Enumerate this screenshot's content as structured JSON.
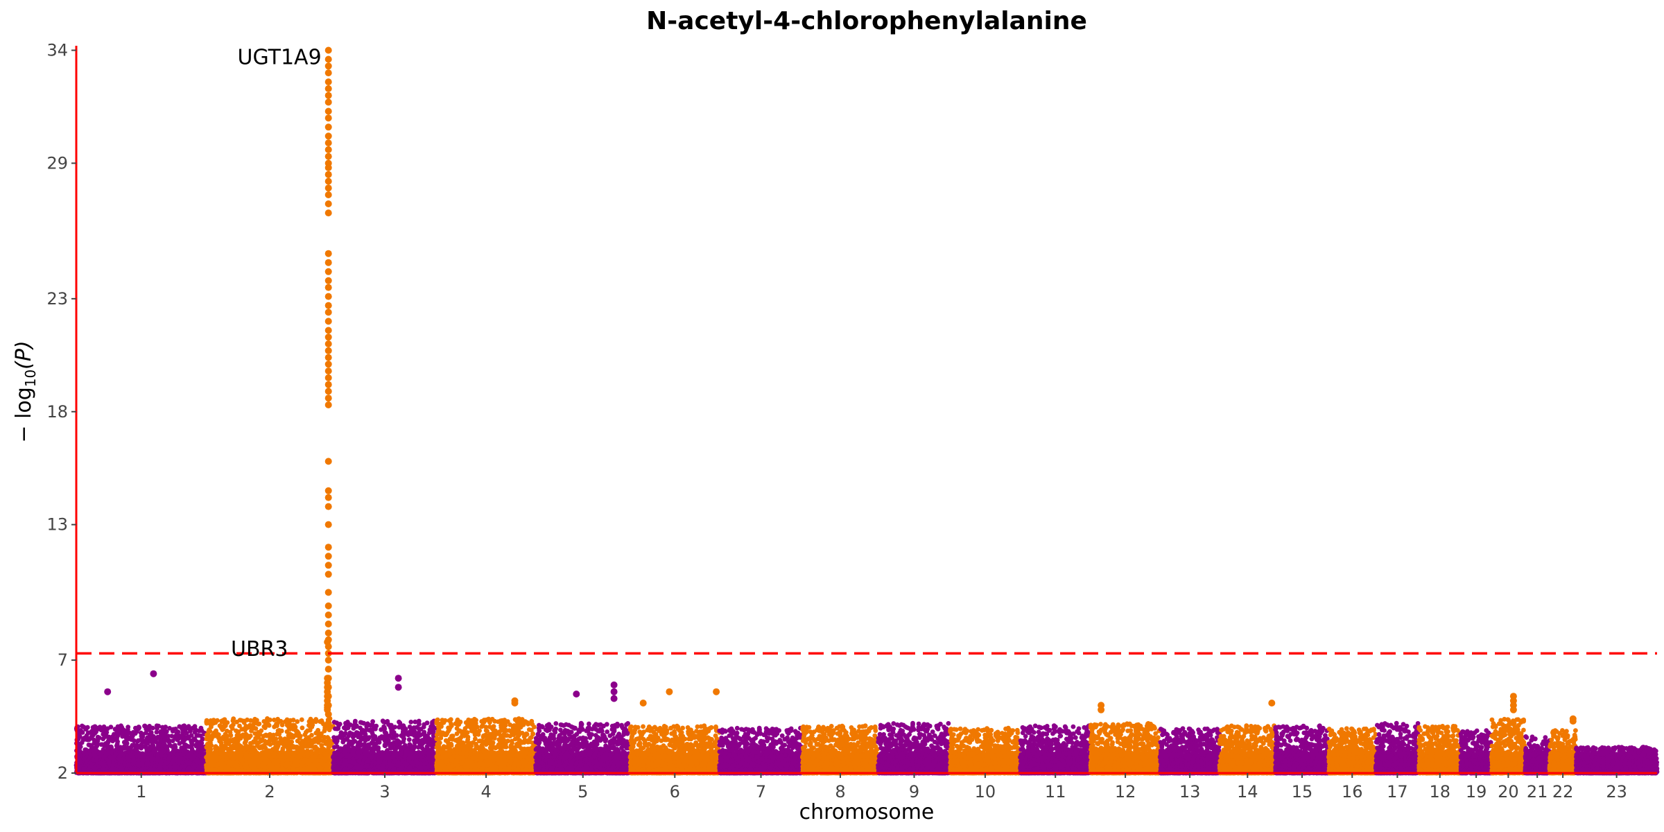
{
  "chart_data": {
    "type": "scatter",
    "title": "N-acetyl-4-chlorophenylalanine",
    "xlabel": "chromosome",
    "ylabel_prefix": "− log",
    "ylabel_sub": "10",
    "ylabel_suffix": "(P)",
    "ylim": [
      2,
      34.2
    ],
    "yticks": [
      2,
      7,
      13,
      18,
      23,
      29,
      34
    ],
    "threshold": 7.3,
    "grid": false,
    "colors": {
      "odd": "#8b008b",
      "even": "#f07800",
      "axis": "#ff0000",
      "threshold": "#ff0000"
    },
    "chromosomes": [
      "1",
      "2",
      "3",
      "4",
      "5",
      "6",
      "7",
      "8",
      "9",
      "10",
      "11",
      "12",
      "13",
      "14",
      "15",
      "16",
      "17",
      "18",
      "19",
      "20",
      "21",
      "22",
      "23"
    ],
    "chromosome_lengths_mb": [
      249,
      243,
      198,
      190,
      181,
      171,
      159,
      145,
      138,
      134,
      135,
      133,
      114,
      107,
      102,
      90,
      83,
      80,
      59,
      64,
      47,
      51,
      155
    ],
    "typical_peak": [
      4.0,
      4.3,
      4.2,
      4.3,
      4.1,
      4.0,
      3.9,
      4.0,
      4.1,
      3.9,
      4.0,
      4.1,
      3.9,
      4.0,
      4.0,
      3.9,
      4.1,
      4.0,
      3.8,
      4.3,
      3.6,
      3.8,
      3.1
    ],
    "highlight_points": [
      {
        "chromosome": "2",
        "position_mb": 232,
        "values": [
          7.8,
          6.2,
          6.0,
          5.8,
          5.6,
          5.4,
          5.2,
          5.0,
          4.9,
          4.8
        ]
      },
      {
        "chromosome": "2",
        "position_mb": 234,
        "values": [
          34.0,
          33.6,
          33.3,
          33.0,
          32.6,
          32.3,
          32.0,
          31.7,
          31.3,
          31.0,
          30.6,
          30.2,
          29.9,
          29.6,
          29.3,
          29.0,
          28.8,
          28.5,
          28.2,
          27.9,
          27.6,
          27.2,
          26.8,
          25.0,
          24.6,
          24.2,
          23.8,
          23.5,
          23.1,
          22.7,
          22.4,
          22.0,
          21.6,
          21.3,
          21.0,
          20.7,
          20.4,
          20.1,
          19.8,
          19.5,
          19.2,
          18.9,
          18.6,
          18.3,
          15.8,
          14.5,
          14.2,
          13.8,
          13.0,
          12.0,
          11.6,
          11.2,
          10.8,
          10.0,
          9.4,
          9.0,
          8.6,
          8.2,
          7.9,
          7.6,
          7.3,
          7.0,
          6.6,
          6.2,
          5.8,
          5.4,
          5.0,
          4.6,
          4.2
        ]
      },
      {
        "chromosome": "1",
        "position_mb": 148,
        "values": [
          6.4
        ]
      },
      {
        "chromosome": "1",
        "position_mb": 60,
        "values": [
          5.6
        ]
      },
      {
        "chromosome": "3",
        "position_mb": 125,
        "values": [
          6.2,
          5.8
        ]
      },
      {
        "chromosome": "5",
        "position_mb": 150,
        "values": [
          5.9,
          5.6,
          5.3
        ]
      },
      {
        "chromosome": "5",
        "position_mb": 78,
        "values": [
          5.5
        ]
      },
      {
        "chromosome": "6",
        "position_mb": 75,
        "values": [
          5.6
        ]
      },
      {
        "chromosome": "6",
        "position_mb": 25,
        "values": [
          5.1
        ]
      },
      {
        "chromosome": "6",
        "position_mb": 165,
        "values": [
          5.6
        ]
      },
      {
        "chromosome": "14",
        "position_mb": 100,
        "values": [
          5.1
        ]
      },
      {
        "chromosome": "20",
        "position_mb": 42,
        "values": [
          5.4,
          5.2,
          5.0,
          4.8
        ]
      },
      {
        "chromosome": "22",
        "position_mb": 45,
        "values": [
          4.4,
          4.3
        ]
      },
      {
        "chromosome": "12",
        "position_mb": 20,
        "values": [
          5.0,
          4.8
        ]
      },
      {
        "chromosome": "4",
        "position_mb": 150,
        "values": [
          5.2,
          5.1
        ]
      }
    ],
    "annotations": [
      {
        "label": "UGT1A9",
        "chromosome": "2",
        "position_mb": 234,
        "y": 34.0
      },
      {
        "label": "UBR3",
        "chromosome": "2",
        "position_mb": 170,
        "y": 7.8
      }
    ]
  }
}
